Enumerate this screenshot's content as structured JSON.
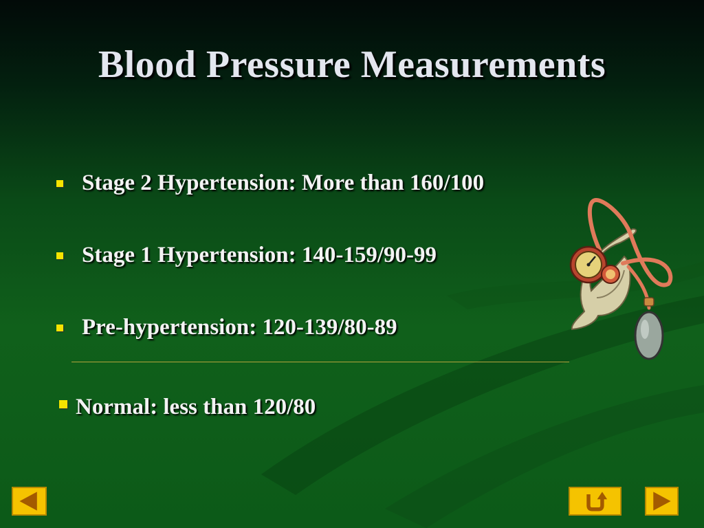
{
  "slide": {
    "title": "Blood Pressure Measurements",
    "bullets": [
      {
        "text": "Stage 2 Hypertension: More than 160/100"
      },
      {
        "text": "Stage 1 Hypertension: 140-159/90-99"
      },
      {
        "text": "Pre-hypertension: 120-139/80-89"
      },
      {
        "text": "Normal: less than 120/80"
      }
    ]
  },
  "icons": {
    "bullet": "yellow-square-bullet",
    "clipart": "blood-pressure-gauge",
    "nav_prev": "left-arrow",
    "nav_return": "return-arrow",
    "nav_next": "right-arrow"
  },
  "colors": {
    "background_top": "#020a08",
    "background_bottom": "#10601b",
    "title": "#e4e6ef",
    "text": "#f3f3f3",
    "bullet": "#f5e400",
    "button": "#f5c300",
    "button_arrow": "#a35a00"
  }
}
